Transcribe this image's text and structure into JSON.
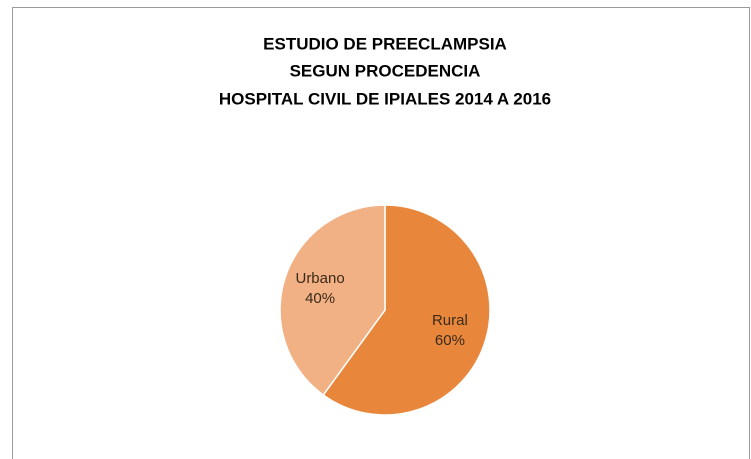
{
  "chart_data": {
    "type": "pie",
    "title": [
      "ESTUDIO DE PREECLAMPSIA",
      "SEGUN PROCEDENCIA",
      "HOSPITAL CIVIL DE IPIALES 2014 A 2016"
    ],
    "categories": [
      "Rural",
      "Urbano"
    ],
    "values": [
      60,
      40
    ],
    "value_labels": [
      "60%",
      "40%"
    ],
    "colors": [
      "#e8873c",
      "#f2b184"
    ]
  }
}
